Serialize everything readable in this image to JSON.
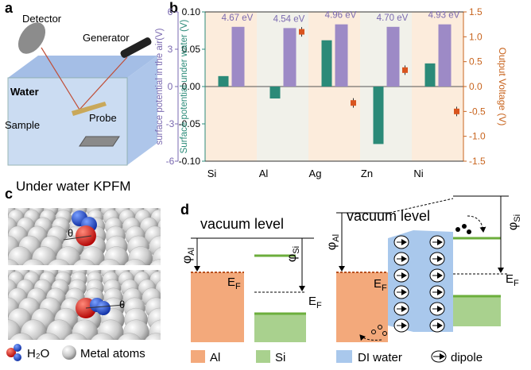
{
  "panel_labels": [
    "a",
    "b",
    "c",
    "d"
  ],
  "panel_a": {
    "detector": "Detector",
    "generator": "Generator",
    "water": "Water",
    "sample": "Sample",
    "probe": "Probe",
    "caption": "Under water KPFM"
  },
  "chart_data": {
    "type": "bar",
    "categories": [
      "Si",
      "Al",
      "Ag",
      "Zn",
      "Ni"
    ],
    "series": [
      {
        "axis": "y",
        "color": "#2b8a78",
        "values": [
          0.014,
          -0.016,
          0.062,
          -0.077,
          0.031
        ]
      },
      {
        "axis": "y_outer",
        "color": "#9d8ac6",
        "values": [
          4.8,
          4.7,
          5.0,
          4.8,
          5.0
        ]
      },
      {
        "axis": "y2",
        "type": "scatter",
        "color": "#d9541e",
        "values": [
          null,
          1.1,
          -0.33,
          0.33,
          -0.5
        ]
      }
    ],
    "annotations": [
      "4.67 eV",
      "4.54 eV",
      "4.96 eV",
      "4.70 eV",
      "4.93 eV"
    ],
    "ylabel": "Surface potential under water (V)",
    "ylim": [
      -0.1,
      0.1
    ],
    "yticks": [
      {
        "value": -0.1,
        "label": "-0.10"
      },
      -0.05,
      {
        "value": 0,
        "label": "0.00"
      },
      0.05,
      {
        "value": 0.1,
        "label": "0.10"
      }
    ],
    "y_outer_label": "surface potential in the air(V)",
    "y_outer_lim": [
      -6,
      6
    ],
    "y_outer_ticks": [
      -6,
      -3,
      0,
      3,
      6
    ],
    "y2label": "Output Voltage (V)",
    "y2lim": [
      -1.5,
      1.5
    ],
    "y2ticks": [
      -1.5,
      {
        "value": -1,
        "label": "-1.0"
      },
      -0.5,
      {
        "value": 0,
        "label": "0.0"
      },
      0.5,
      {
        "value": 1,
        "label": "1.0"
      },
      1.5
    ],
    "band_colors": [
      "#fcecdc",
      "#f1f1ea"
    ]
  },
  "panel_c": {
    "theta_top": "θ",
    "theta_bottom": "θ",
    "h2o": "H₂O",
    "metal": "Metal atoms"
  },
  "panel_d": {
    "left": {
      "vacuum": "vacuum level",
      "phi_al": {
        "symbol": "φ",
        "sub": "Al"
      },
      "phi_si": {
        "symbol": "φ",
        "sub": "Si"
      },
      "ef_al": {
        "symbol": "E",
        "sub": "F"
      },
      "ef_si": {
        "symbol": "E",
        "sub": "F"
      }
    },
    "right": {
      "vacuum": "vacuum level",
      "phi_al": {
        "symbol": "φ",
        "sub": "Al"
      },
      "phi_si": {
        "symbol": "φ",
        "sub": "Si"
      },
      "ef_al": {
        "symbol": "E",
        "sub": "F"
      },
      "ef_si": {
        "symbol": "E",
        "sub": "F"
      }
    },
    "legend": [
      "Al",
      "Si",
      "DI water",
      "dipole"
    ]
  }
}
